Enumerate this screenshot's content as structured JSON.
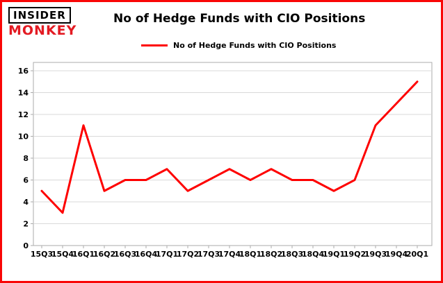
{
  "branding": {
    "logo_line1": "INSIDER",
    "logo_line2": "MONKEY",
    "logo_red": "#e31b23"
  },
  "header": {
    "title": "No of Hedge Funds with CIO Positions"
  },
  "legend": {
    "label": "No of Hedge Funds with CIO Positions",
    "line_color": "#fe0000"
  },
  "chart_data": {
    "type": "line",
    "title": "No of Hedge Funds with CIO Positions",
    "categories": [
      "15Q3",
      "15Q4",
      "16Q1",
      "16Q2",
      "16Q3",
      "16Q4",
      "17Q1",
      "17Q2",
      "17Q3",
      "17Q4",
      "18Q1",
      "18Q2",
      "18Q3",
      "18Q4",
      "19Q1",
      "19Q2",
      "19Q3",
      "19Q4",
      "20Q1"
    ],
    "values": [
      5,
      3,
      11,
      5,
      6,
      6,
      7,
      5,
      6,
      7,
      6,
      7,
      6,
      6,
      5,
      6,
      11,
      13,
      15
    ],
    "xlabel": "",
    "ylabel": "",
    "ylim": [
      0,
      16
    ],
    "yticks": [
      0,
      2,
      4,
      6,
      8,
      10,
      12,
      14,
      16
    ],
    "grid": true,
    "legend_position": "top-left",
    "line_color": "#fe0000",
    "grid_color": "#d9d9d9",
    "spine_color": "#ababab",
    "tick_label_color": "#000000",
    "plot_bg": "#ffffff"
  }
}
